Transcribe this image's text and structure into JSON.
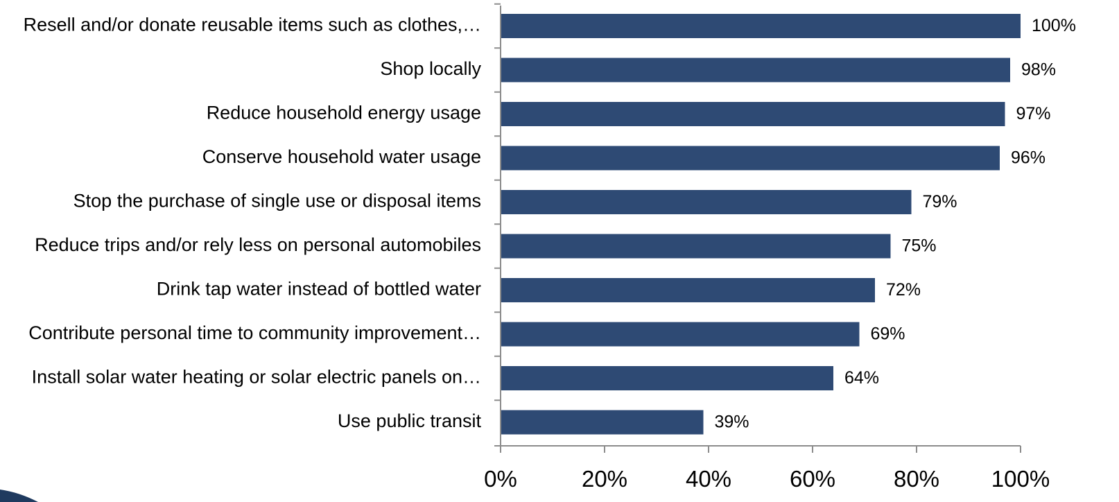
{
  "chart_data": {
    "type": "bar",
    "orientation": "horizontal",
    "title": "",
    "xlabel": "",
    "ylabel": "",
    "xlim": [
      0,
      100
    ],
    "grid": false,
    "legend": "none",
    "bar_color": "#2e4a74",
    "categories": [
      "Resell and/or donate reusable items such as clothes,…",
      "Shop locally",
      "Reduce household energy usage",
      "Conserve household water usage",
      "Stop the purchase of single use or disposal items",
      "Reduce trips and/or rely less on personal automobiles",
      "Drink tap water instead of bottled water",
      "Contribute personal time to community improvement…",
      "Install solar water heating or solar electric panels on…",
      "Use public transit"
    ],
    "values": [
      100,
      98,
      97,
      96,
      79,
      75,
      72,
      69,
      64,
      39
    ],
    "value_labels": [
      "100%",
      "98%",
      "97%",
      "96%",
      "79%",
      "75%",
      "72%",
      "69%",
      "64%",
      "39%"
    ],
    "x_ticks": [
      0,
      20,
      40,
      60,
      80,
      100
    ],
    "x_tick_labels": [
      "0%",
      "20%",
      "40%",
      "60%",
      "80%",
      "100%"
    ]
  },
  "decoration": {
    "corner_color": "#1f3a5f"
  }
}
